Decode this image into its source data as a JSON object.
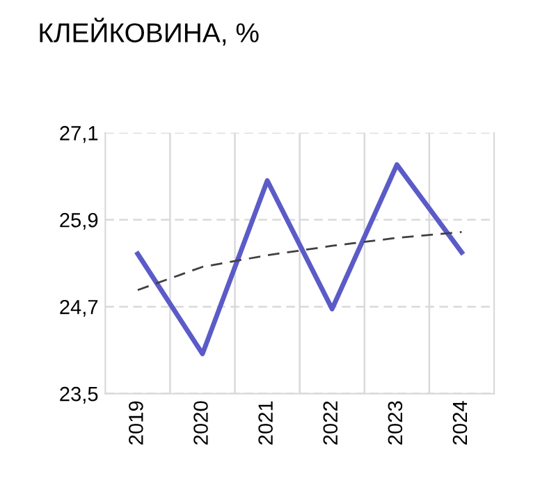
{
  "chart_data": {
    "type": "line",
    "title": "КЛЕЙКОВИНА, %",
    "categories": [
      "2019",
      "2020",
      "2021",
      "2022",
      "2023",
      "2024"
    ],
    "series": [
      {
        "color": "#5b5bc8",
        "values": [
          25.43,
          24.05,
          26.44,
          24.67,
          26.66,
          25.45
        ],
        "line_style": "solid"
      },
      {
        "color": "#404040",
        "values": [
          24.93,
          25.25,
          25.41,
          25.54,
          25.65,
          25.73
        ],
        "line_style": "dashed"
      }
    ],
    "ylim": [
      23.5,
      27.1
    ],
    "yticks": [
      {
        "value": 23.5,
        "label": "23,5"
      },
      {
        "value": 24.7,
        "label": "24,7"
      },
      {
        "value": 25.9,
        "label": "25,9"
      },
      {
        "value": 27.1,
        "label": "27,1"
      }
    ],
    "grid": true,
    "marker": "none",
    "legend": false
  }
}
